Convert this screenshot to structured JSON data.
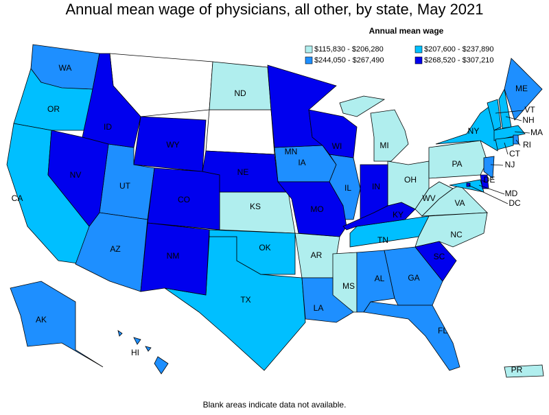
{
  "title": "Annual mean wage of physicians, all other, by state, May 2021",
  "legend": {
    "title": "Annual mean wage",
    "bins": [
      {
        "label": "$115,830 - $206,280",
        "color": "#b0eeee",
        "states": [
          "ND",
          "KS",
          "MI",
          "OH",
          "PA",
          "WV",
          "VA",
          "NC",
          "AR",
          "MS",
          "PR"
        ]
      },
      {
        "label": "$207,600 - $237,890",
        "color": "#00bfff",
        "states": [
          "OR",
          "CA",
          "TX",
          "OK",
          "TN",
          "NY",
          "VT",
          "NH",
          "MA",
          "CT",
          "MD"
        ]
      },
      {
        "label": "$244,050 - $267,490",
        "color": "#1e8fff",
        "states": [
          "WA",
          "UT",
          "AZ",
          "IA",
          "IL",
          "LA",
          "AL",
          "GA",
          "FL",
          "AK",
          "HI",
          "ME",
          "RI",
          "NJ"
        ]
      },
      {
        "label": "$268,520 - $307,210",
        "color": "#0000ee",
        "states": [
          "ID",
          "NV",
          "WY",
          "CO",
          "NM",
          "NE",
          "MN",
          "WI",
          "MO",
          "IN",
          "KY",
          "SC",
          "DE",
          "DC"
        ]
      }
    ]
  },
  "note": "Blank areas indicate data not available."
}
